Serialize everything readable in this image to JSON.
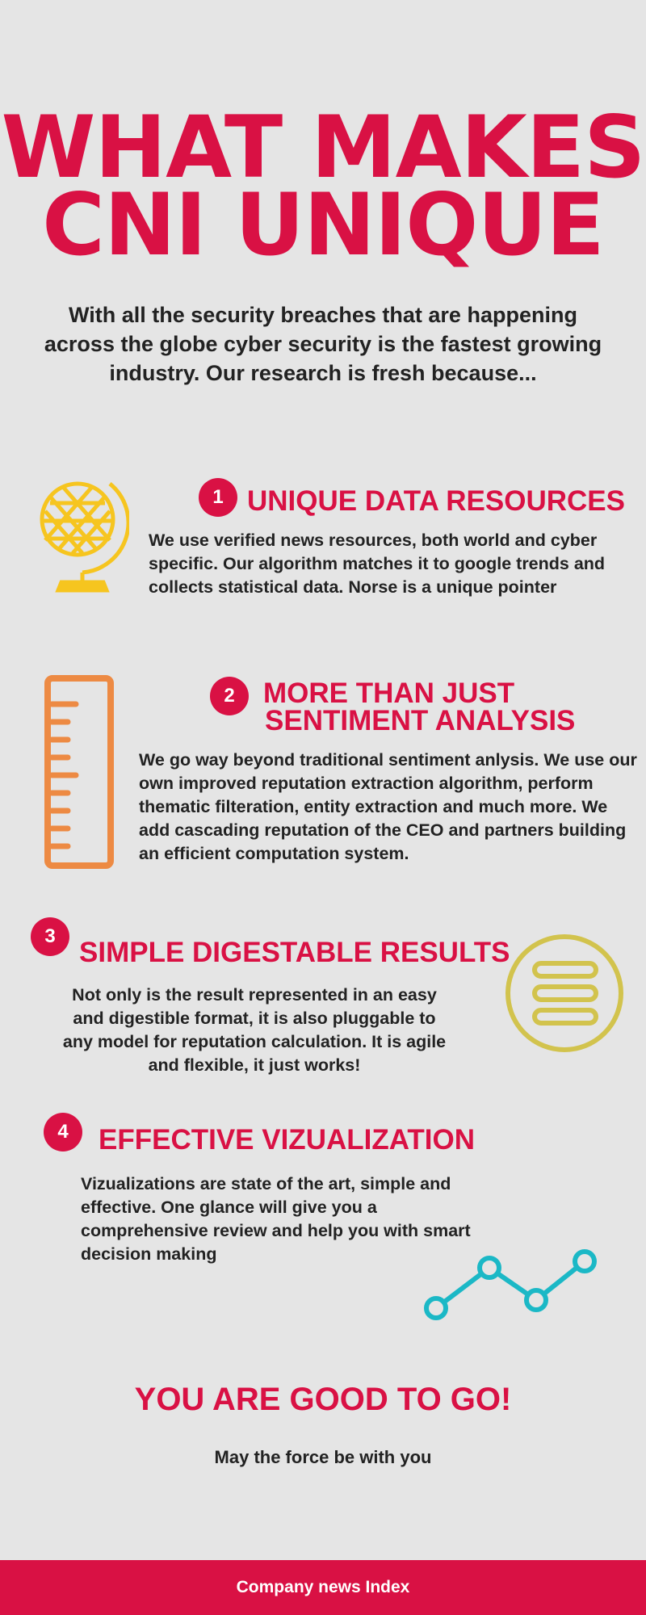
{
  "title": {
    "line1": "WHAT MAKES",
    "line2": "CNI UNIQUE"
  },
  "intro": "With all the security breaches that are happening across the globe cyber security is the fastest growing industry. Our research is fresh because...",
  "colors": {
    "accent": "#d91144",
    "background": "#e5e5e5",
    "globe": "#f6c51f",
    "ruler": "#ed8a43",
    "menu": "#d2c34d",
    "chart": "#1bb8c6"
  },
  "sections": [
    {
      "number": "1",
      "icon": "globe-icon",
      "heading": "UNIQUE DATA RESOURCES",
      "body": "We use verified news resources, both world and cyber specific. Our algorithm matches it to google trends and collects statistical data. Norse is a unique pointer"
    },
    {
      "number": "2",
      "icon": "ruler-icon",
      "heading_line1": "MORE THAN JUST",
      "heading_line2": "SENTIMENT ANALYSIS",
      "body": "We go way beyond traditional sentiment anlysis. We use our own improved reputation extraction algorithm, perform thematic filteration, entity extraction and much more. We add cascading reputation of the CEO and partners building an efficient computation system."
    },
    {
      "number": "3",
      "icon": "menu-icon",
      "heading": "SIMPLE DIGESTABLE RESULTS",
      "body": "Not only is the result represented in an easy and digestible format, it is also pluggable to any model for reputation calculation. It is agile and flexible, it just works!"
    },
    {
      "number": "4",
      "icon": "line-chart-icon",
      "heading": "EFFECTIVE VIZUALIZATION",
      "body": "Vizualizations are state of the art, simple and effective. One glance will give you a comprehensive review and help you with smart decision making"
    }
  ],
  "closing": {
    "heading": "YOU ARE GOOD TO GO!",
    "sub": "May the force be with you"
  },
  "footer": "Company news Index"
}
